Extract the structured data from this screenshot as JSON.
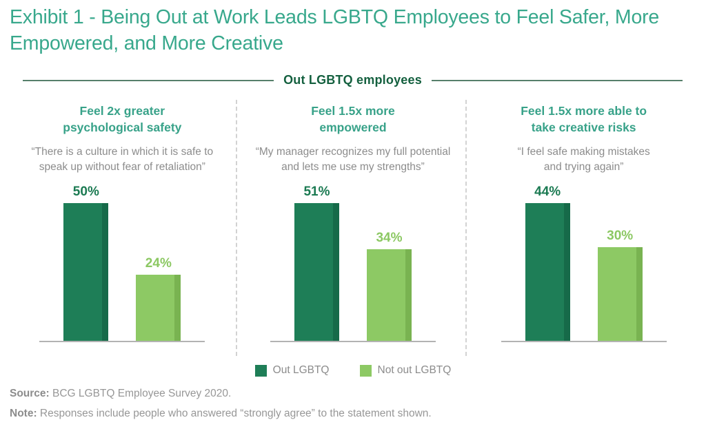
{
  "title": "Exhibit 1 - Being Out at Work Leads LGBTQ Employees to Feel Safer, More Empowered, and More Creative",
  "group_header": "Out LGBTQ employees",
  "panels": [
    {
      "heading_line1": "Feel 2x greater",
      "heading_line2": "psychological safety",
      "quote_line1": "“There is a culture in which it is safe to",
      "quote_line2": "speak up without fear of retaliation”"
    },
    {
      "heading_line1": "Feel 1.5x more",
      "heading_line2": "empowered",
      "quote_line1": "“My manager recognizes my full potential",
      "quote_line2": "and lets me use my strengths”"
    },
    {
      "heading_line1": "Feel 1.5x more able to",
      "heading_line2": "take creative risks",
      "quote_line1": "“I feel safe making mistakes",
      "quote_line2": "and trying again”"
    }
  ],
  "chart_data": {
    "type": "bar",
    "title": "Out LGBTQ employees",
    "categories": [
      "Feel 2x greater psychological safety",
      "Feel 1.5x more empowered",
      "Feel 1.5x more able to take creative risks"
    ],
    "series": [
      {
        "name": "Out LGBTQ",
        "values": [
          50,
          51,
          44
        ],
        "color": "#1e7e57"
      },
      {
        "name": "Not out LGBTQ",
        "values": [
          24,
          34,
          30
        ],
        "color": "#8dc964"
      }
    ],
    "unit": "%",
    "ylim": [
      0,
      55
    ],
    "grid": false,
    "legend_position": "bottom",
    "annotations": [
      "“There is a culture in which it is safe to speak up without fear of retaliation”",
      "“My manager recognizes my full potential and lets me use my strengths”",
      "“I feel safe making mistakes and trying again”"
    ]
  },
  "colors": {
    "title_teal": "#38a88c",
    "heading_teal": "#38a289",
    "group_header_green": "#14603f",
    "out_green": "#1e7e57",
    "out_green_shade": "#166a49",
    "not_out_green": "#8dc964",
    "not_out_green_shade": "#79b351",
    "quote_gray": "#8c8c8c",
    "baseline_gray": "#b3b3b3"
  },
  "footnotes": {
    "source_label": "Source:",
    "source_text": " BCG LGBTQ Employee Survey 2020.",
    "note_label": "Note:",
    "note_text": " Responses include people who answered “strongly agree” to the statement shown."
  }
}
